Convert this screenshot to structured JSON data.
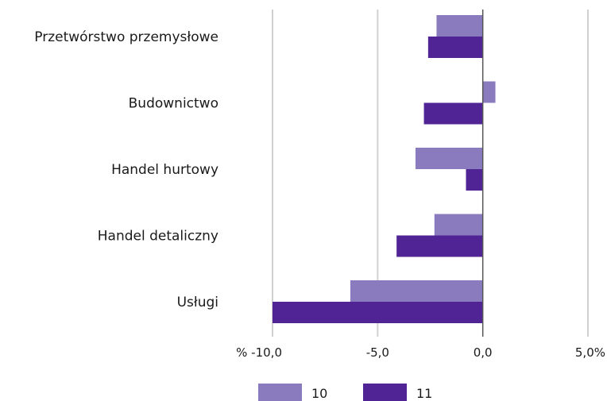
{
  "chart_data": {
    "type": "bar",
    "orientation": "horizontal",
    "categories": [
      "Przetwórstwo przemysłowe",
      "Budownictwo",
      "Handel hurtowy",
      "Handel detaliczny",
      "Usługi"
    ],
    "series": [
      {
        "name": "10",
        "values": [
          -2.2,
          0.6,
          -3.2,
          -2.3,
          -6.3
        ]
      },
      {
        "name": "11",
        "values": [
          -2.6,
          -2.8,
          -0.8,
          -4.1,
          -10.0
        ]
      }
    ],
    "xlim": [
      -10.0,
      5.0
    ],
    "xticks": [
      -10,
      -5,
      0,
      5
    ],
    "xtick_labels": [
      "% -10,0",
      "-5,0",
      "0,0",
      "5,0%"
    ],
    "grid": "vertical",
    "legend": "bottom-center",
    "colors": {
      "10": "#8a7bbf",
      "11": "#512496",
      "grid": "#d0d0d0",
      "zero_axis": "#555555"
    }
  }
}
